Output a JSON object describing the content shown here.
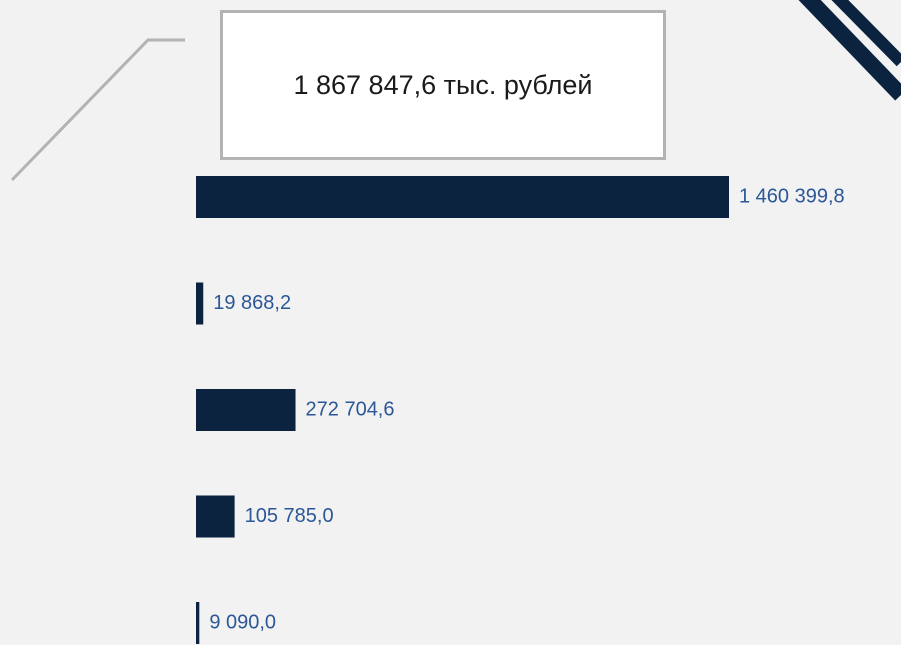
{
  "chart_data": {
    "type": "hbar",
    "title": "1 867 847,6 тыс. рублей",
    "values": [
      1460399.8,
      19868.2,
      272704.6,
      105785.0,
      9090.0
    ],
    "value_labels": [
      "1 460 399,8",
      "19 868,2",
      "272 704,6",
      "105 785,0",
      "9 090,0"
    ],
    "color": "#0c2340",
    "label_color": "#2b5797"
  }
}
